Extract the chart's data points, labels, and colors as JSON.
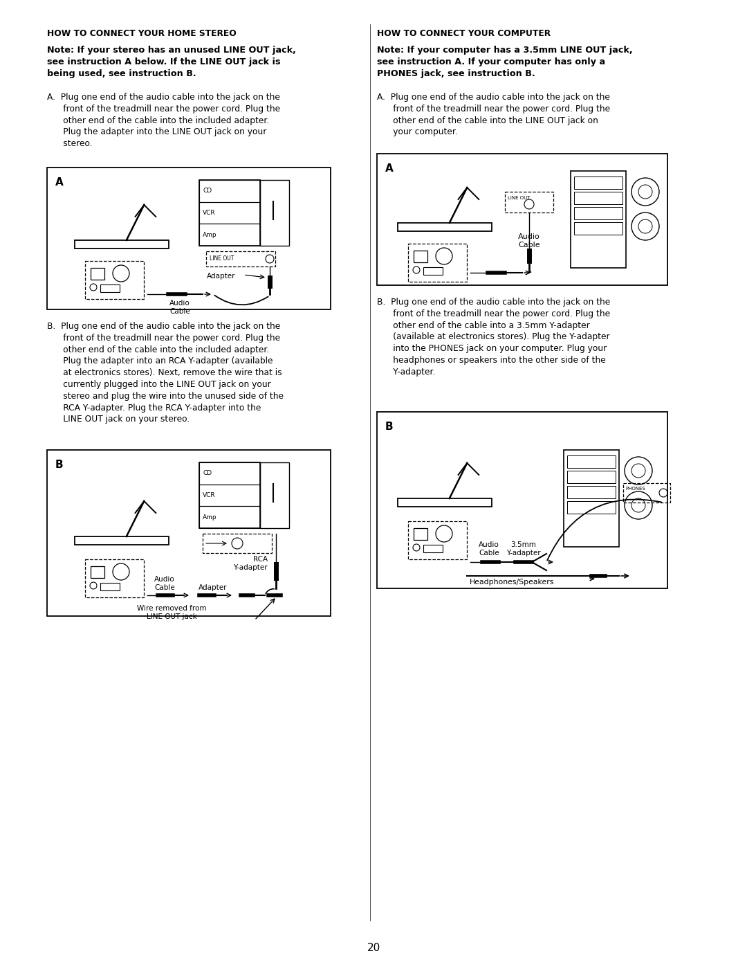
{
  "page_number": "20",
  "bg": "#ffffff",
  "tc": "#000000",
  "left_title": "HOW TO CONNECT YOUR HOME STEREO",
  "right_title": "HOW TO CONNECT YOUR COMPUTER",
  "left_note": "Note: If your stereo has an unused LINE OUT jack,\nsee instruction A below. If the LINE OUT jack is\nbeing used, see instruction B.",
  "right_note": "Note: If your computer has a 3.5mm LINE OUT jack,\nsee instruction A. If your computer has only a\nPHONES jack, see instruction B.",
  "left_instr_a": "A.  Plug one end of the audio cable into the jack on the\n      front of the treadmill near the power cord. Plug the\n      other end of the cable into the included adapter.\n      Plug the adapter into the LINE OUT jack on your\n      stereo.",
  "right_instr_a": "A.  Plug one end of the audio cable into the jack on the\n      front of the treadmill near the power cord. Plug the\n      other end of the cable into the LINE OUT jack on\n      your computer.",
  "left_instr_b": "B.  Plug one end of the audio cable into the jack on the\n      front of the treadmill near the power cord. Plug the\n      other end of the cable into the included adapter.\n      Plug the adapter into an RCA Y-adapter (available\n      at electronics stores). Next, remove the wire that is\n      currently plugged into the LINE OUT jack on your\n      stereo and plug the wire into the unused side of the\n      RCA Y-adapter. Plug the RCA Y-adapter into the\n      LINE OUT jack on your stereo.",
  "right_instr_b": "B.  Plug one end of the audio cable into the jack on the\n      front of the treadmill near the power cord. Plug the\n      other end of the cable into a 3.5mm Y-adapter\n      (available at electronics stores). Plug the Y-adapter\n      into the PHONES jack on your computer. Plug your\n      headphones or speakers into the other side of the\n      Y-adapter."
}
